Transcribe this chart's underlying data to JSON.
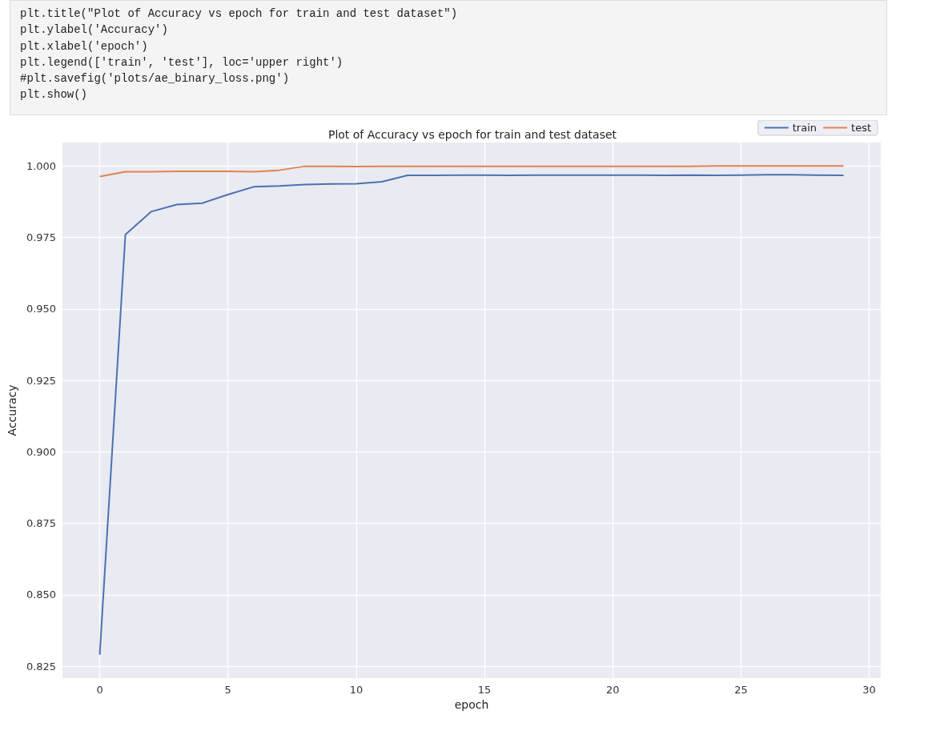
{
  "chart_data": {
    "type": "line",
    "title": "Plot of Accuracy vs epoch for train and test dataset",
    "xlabel": "epoch",
    "ylabel": "Accuracy",
    "annotations": [
      "plt.title(\"Plot of Accuracy vs epoch for train and test dataset\")",
      "plt.ylabel('Accuracy')",
      "plt.xlabel('epoch')",
      "plt.legend(['train', 'test'], loc='upper right')",
      "#plt.savefig('plots/ae_binary_loss.png')",
      "plt.show()"
    ],
    "x": [
      0,
      1,
      2,
      3,
      4,
      5,
      6,
      7,
      8,
      9,
      10,
      11,
      12,
      13,
      14,
      15,
      16,
      17,
      18,
      19,
      20,
      21,
      22,
      23,
      24,
      25,
      26,
      27,
      28,
      29
    ],
    "series": [
      {
        "name": "train",
        "color": "#4c72b0",
        "values": [
          0.829,
          0.976,
          0.984,
          0.9865,
          0.987,
          0.99,
          0.9927,
          0.993,
          0.9935,
          0.9937,
          0.9938,
          0.9945,
          0.9967,
          0.9967,
          0.9968,
          0.9968,
          0.9967,
          0.9968,
          0.9968,
          0.9968,
          0.9968,
          0.9968,
          0.9967,
          0.9968,
          0.9967,
          0.9968,
          0.9969,
          0.9969,
          0.9968,
          0.9967
        ]
      },
      {
        "name": "test",
        "color": "#dd8452",
        "values": [
          0.9963,
          0.998,
          0.998,
          0.9981,
          0.9981,
          0.9981,
          0.998,
          0.9985,
          0.9999,
          0.9999,
          0.9998,
          0.9999,
          0.9999,
          0.9999,
          0.9999,
          0.9999,
          0.9999,
          0.9999,
          0.9999,
          0.9999,
          0.9999,
          0.9999,
          0.9999,
          0.9999,
          1.0,
          1.0,
          1.0,
          1.0,
          1.0,
          1.0
        ]
      }
    ],
    "xlim": [
      -1.45,
      30.45
    ],
    "xticks": [
      0,
      5,
      10,
      15,
      20,
      25,
      30
    ],
    "ylim": [
      0.8208,
      1.0082
    ],
    "yticks": [
      {
        "value": 0.825,
        "label": "0.825"
      },
      {
        "value": 0.85,
        "label": "0.850"
      },
      {
        "value": 0.875,
        "label": "0.875"
      },
      {
        "value": 0.9,
        "label": "0.900"
      },
      {
        "value": 0.925,
        "label": "0.925"
      },
      {
        "value": 0.95,
        "label": "0.950"
      },
      {
        "value": 0.975,
        "label": "0.975"
      },
      {
        "value": 1.0,
        "label": "1.000"
      }
    ],
    "grid": true,
    "legend": "top right",
    "marker": "none",
    "line_style": "solid"
  }
}
